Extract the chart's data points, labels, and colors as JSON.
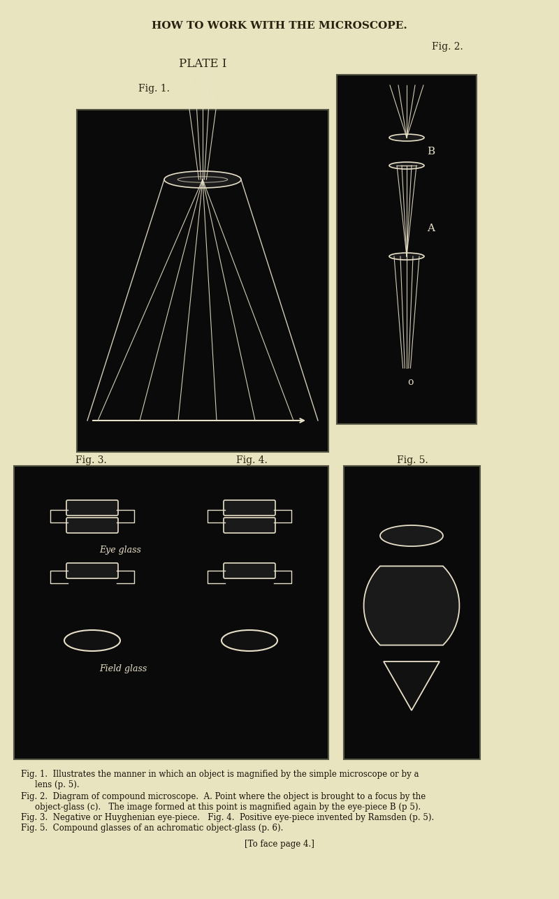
{
  "page_bg": "#e8e4c0",
  "page_title": "HOW TO WORK WITH THE MICROSCOPE.",
  "plate_title": "PLATE I",
  "fig1_label": "Fig. 1.",
  "fig2_label": "Fig. 2.",
  "fig3_label": "Fig. 3.",
  "fig4_label": "Fig. 4.",
  "fig5_label": "Fig. 5.",
  "panel_bg": "#0a0a0a",
  "line_color": "#e8e0c8",
  "caption_line1": "Fig. 1.  Illustrates the manner in which an object is magnified by the simple microscope or by a",
  "caption_line2": "            lens (p. 5).",
  "caption_line3": "Fig. 2.  Diagram of compound microscope.  A. Point where the object is brought to a focus by the",
  "caption_line4": "            object-glass (c).  The image formed at this point is magnified again by the eye-piece B (p 5).",
  "caption_line5": "Fig. 3.  Negative or Huyghenian eye-piece.   Fig. 4.  Positive eye-piece invented by Ramsden (p. 5).",
  "caption_line6": "Fig. 5.  Compound glasses of an achromatic object-glass (p. 6).",
  "caption_line7": "[To face page 4.]"
}
